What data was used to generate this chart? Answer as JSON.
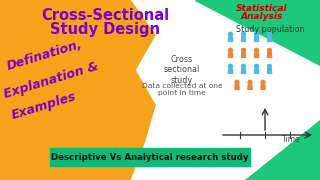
{
  "bg_orange_color": "#F5A31A",
  "bg_white_color": "#FFFFFF",
  "green_color": "#1DC87A",
  "teal_bar_color": "#12B878",
  "title_text_line1": "Cross-Sectional",
  "title_text_line2": "Study Design",
  "title_color": "#7B00CC",
  "left_lines": [
    "Defination,",
    "Explanation &",
    "Examples"
  ],
  "left_text_color": "#7B00CC",
  "stat_line1": "Statistical",
  "stat_line2": "Analysis",
  "stat_color": "#CC0000",
  "study_pop_text": "Study population",
  "cross_text": "Cross\nsectional\nstudy",
  "data_text": "Data collected at one\npoint in time",
  "bottom_bar_text": "Descriptive Vs Analytical research study",
  "time_text": "Time",
  "cyan_color": "#4BBDE8",
  "orange_person_color": "#E8873A",
  "figure_width": 3.2,
  "figure_height": 1.8,
  "dpi": 100
}
